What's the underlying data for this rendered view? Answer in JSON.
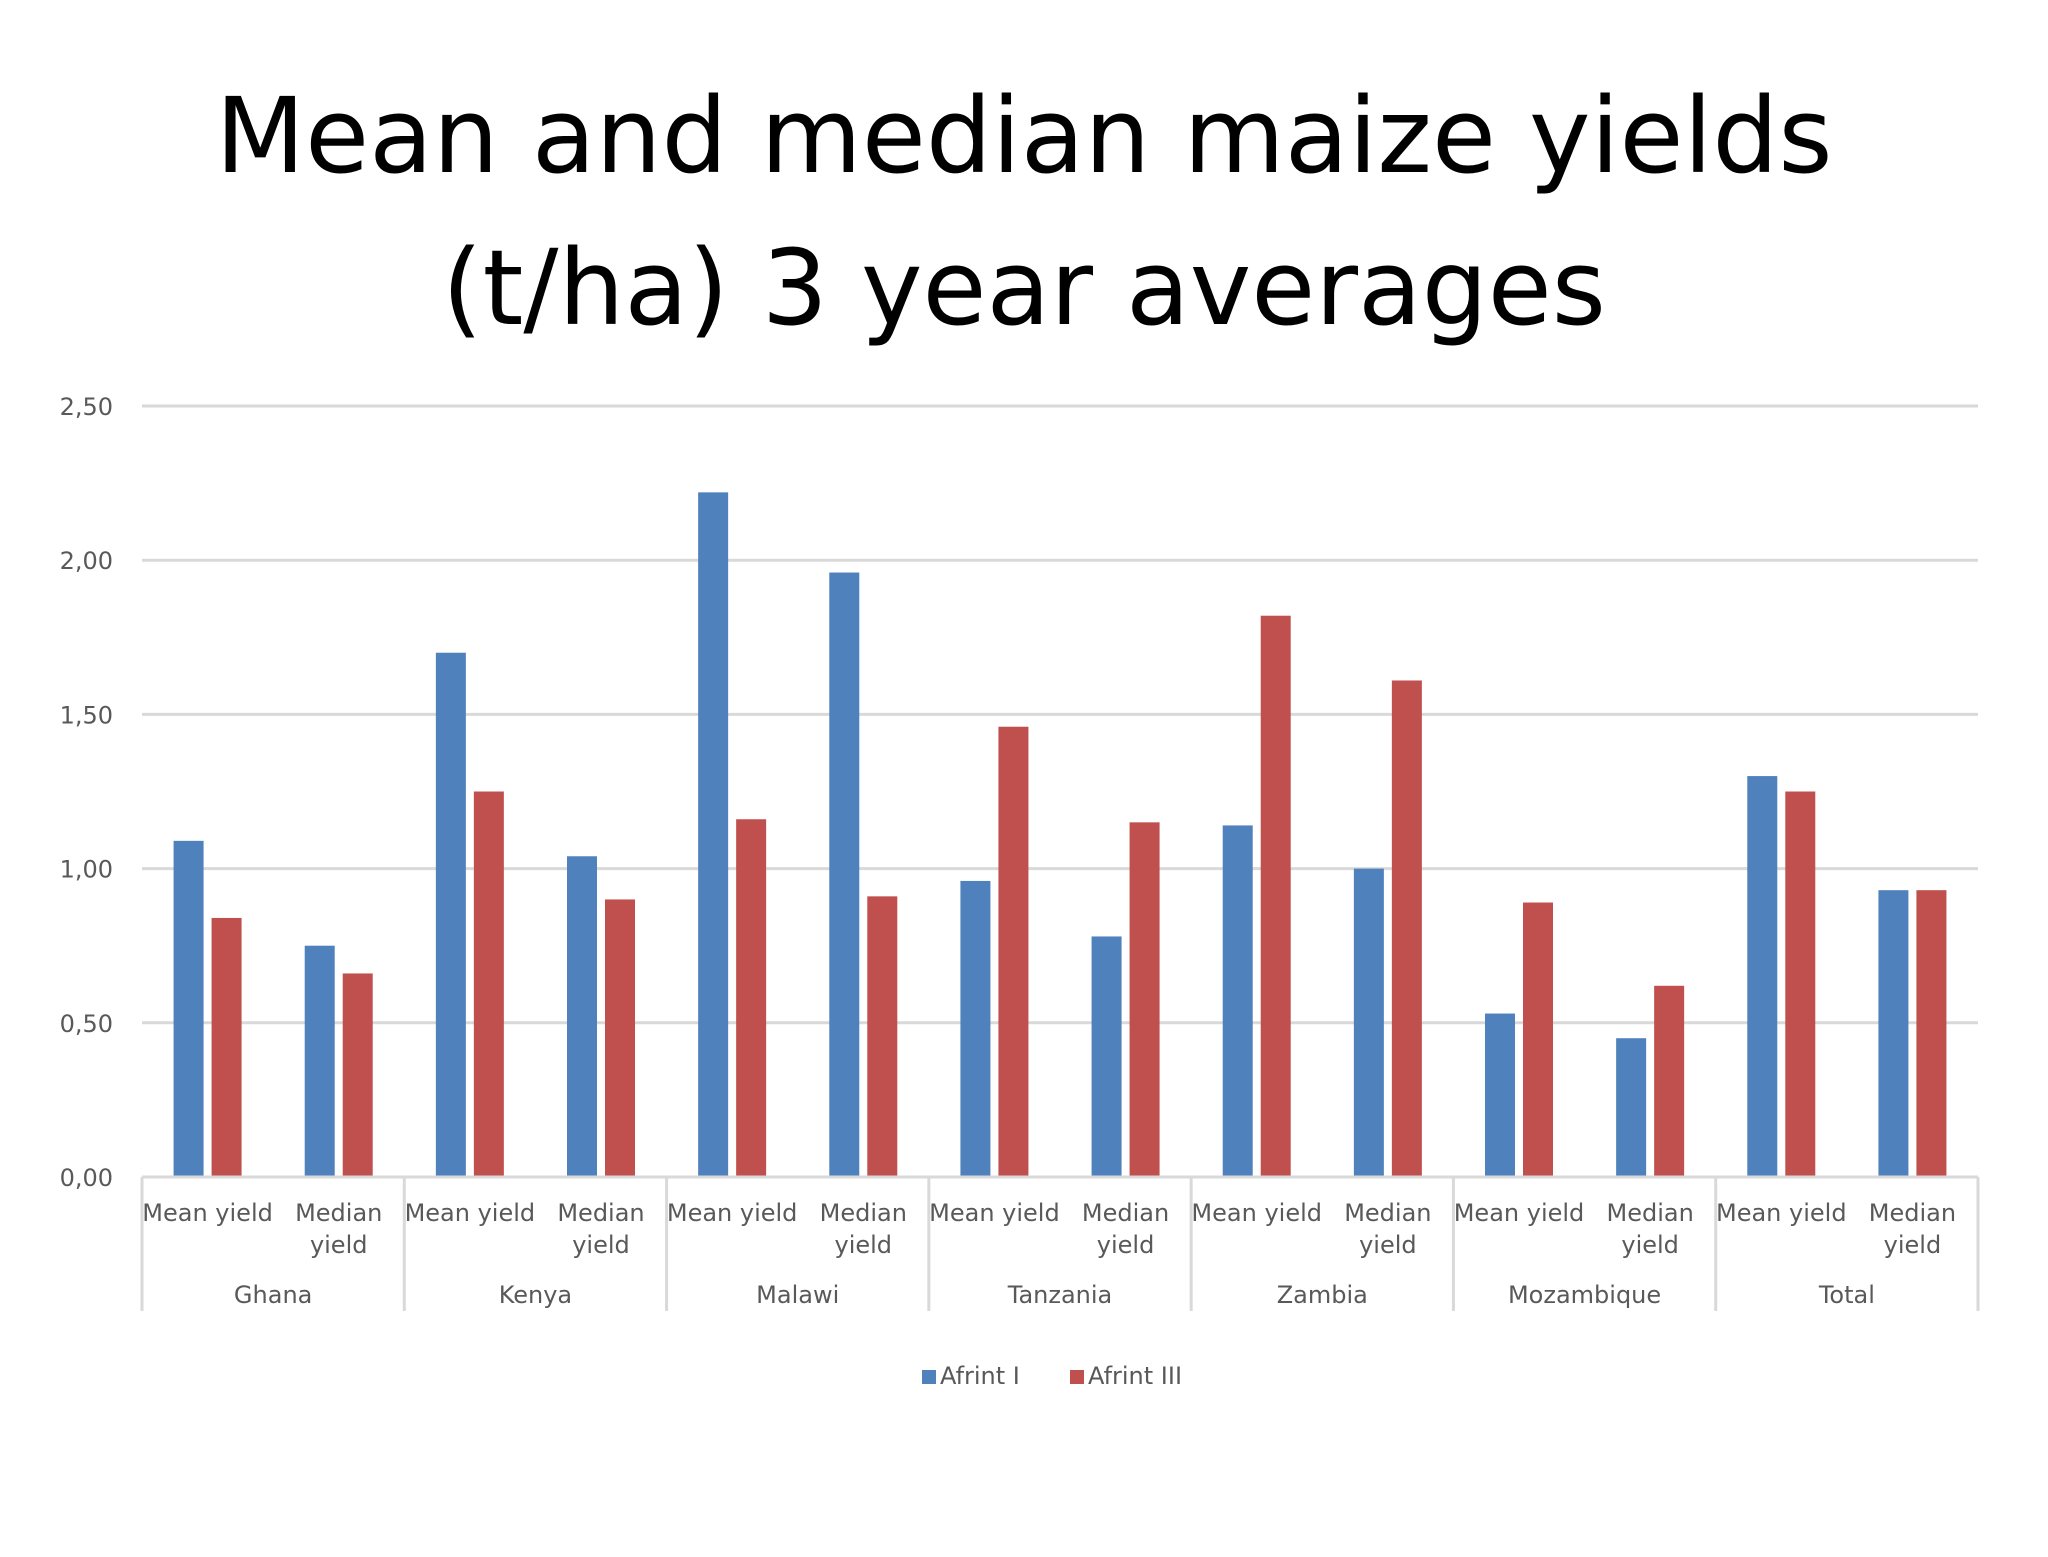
{
  "slide": {
    "title_line1": "Mean and median maize yields",
    "title_line2": "(t/ha) 3 year averages"
  },
  "chart_data": {
    "type": "bar",
    "title": "",
    "xlabel": "",
    "ylabel": "",
    "ylim": [
      0,
      2.5
    ],
    "yticks": [
      "0,00",
      "0,50",
      "1,00",
      "1,50",
      "2,00",
      "2,50"
    ],
    "grid": true,
    "legend_position": "bottom",
    "groups": [
      {
        "label": "Ghana",
        "categories": [
          "Mean yield",
          "Median yield"
        ]
      },
      {
        "label": "Kenya",
        "categories": [
          "Mean yield",
          "Median yield"
        ]
      },
      {
        "label": "Malawi",
        "categories": [
          "Mean yield",
          "Median yield"
        ]
      },
      {
        "label": "Tanzania",
        "categories": [
          "Mean yield",
          "Median yield"
        ]
      },
      {
        "label": "Zambia",
        "categories": [
          "Mean yield",
          "Median yield"
        ]
      },
      {
        "label": "Mozambique",
        "categories": [
          "Mean yield",
          "Median yield"
        ]
      },
      {
        "label": "Total",
        "categories": [
          "Mean yield",
          "Median yield"
        ]
      }
    ],
    "series": [
      {
        "name": "Afrint I",
        "color": "#4F81BD",
        "values": [
          1.09,
          0.75,
          1.7,
          1.04,
          2.22,
          1.96,
          0.96,
          0.78,
          1.14,
          1.0,
          0.53,
          0.45,
          1.3,
          0.93
        ]
      },
      {
        "name": "Afrint III",
        "color": "#C0504D",
        "values": [
          0.84,
          0.66,
          1.25,
          0.9,
          1.16,
          0.91,
          1.46,
          1.15,
          1.82,
          1.61,
          0.89,
          0.62,
          1.25,
          0.93
        ]
      }
    ]
  }
}
